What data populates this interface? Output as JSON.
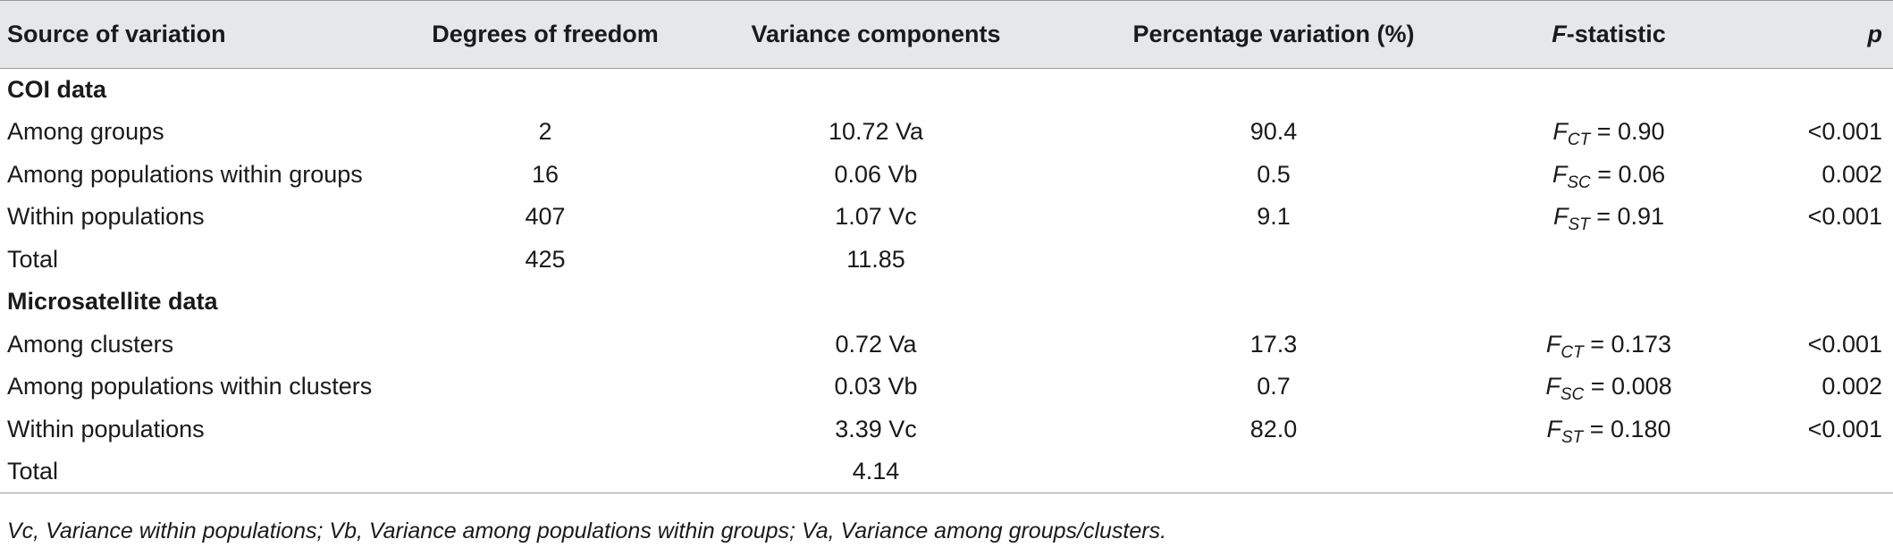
{
  "headers": {
    "source": "Source of variation",
    "df": "Degrees of freedom",
    "variance": "Variance components",
    "percentage": "Percentage variation (%)",
    "fstat_letter": "F",
    "fstat_rest": "-statistic",
    "p": "p"
  },
  "sections": [
    {
      "title": "COI data",
      "rows": [
        {
          "source": "Among groups",
          "df": "2",
          "variance": "10.72 Va",
          "percentage": "90.4",
          "f_letter": "F",
          "f_sub": "CT",
          "f_value": " = 0.90",
          "p": "<0.001"
        },
        {
          "source": "Among populations within groups",
          "df": "16",
          "variance": "0.06 Vb",
          "percentage": "0.5",
          "f_letter": "F",
          "f_sub": "SC",
          "f_value": " = 0.06",
          "p": "0.002"
        },
        {
          "source": "Within populations",
          "df": "407",
          "variance": "1.07 Vc",
          "percentage": "9.1",
          "f_letter": "F",
          "f_sub": "ST",
          "f_value": " = 0.91",
          "p": "<0.001"
        },
        {
          "source": "Total",
          "df": "425",
          "variance": "11.85",
          "percentage": "",
          "f_letter": "",
          "f_sub": "",
          "f_value": "",
          "p": ""
        }
      ]
    },
    {
      "title": "Microsatellite data",
      "rows": [
        {
          "source": "Among clusters",
          "df": "",
          "variance": "0.72 Va",
          "percentage": "17.3",
          "f_letter": "F",
          "f_sub": "CT",
          "f_value": " = 0.173",
          "p": "<0.001"
        },
        {
          "source": "Among populations within clusters",
          "df": "",
          "variance": "0.03 Vb",
          "percentage": "0.7",
          "f_letter": "F",
          "f_sub": "SC",
          "f_value": " = 0.008",
          "p": "0.002"
        },
        {
          "source": "Within populations",
          "df": "",
          "variance": "3.39 Vc",
          "percentage": "82.0",
          "f_letter": "F",
          "f_sub": "ST",
          "f_value": " = 0.180",
          "p": "<0.001"
        },
        {
          "source": "Total",
          "df": "",
          "variance": "4.14",
          "percentage": "",
          "f_letter": "",
          "f_sub": "",
          "f_value": "",
          "p": ""
        }
      ]
    }
  ],
  "footnote": "Vc, Variance within populations; Vb, Variance among populations within groups; Va, Variance among groups/clusters."
}
